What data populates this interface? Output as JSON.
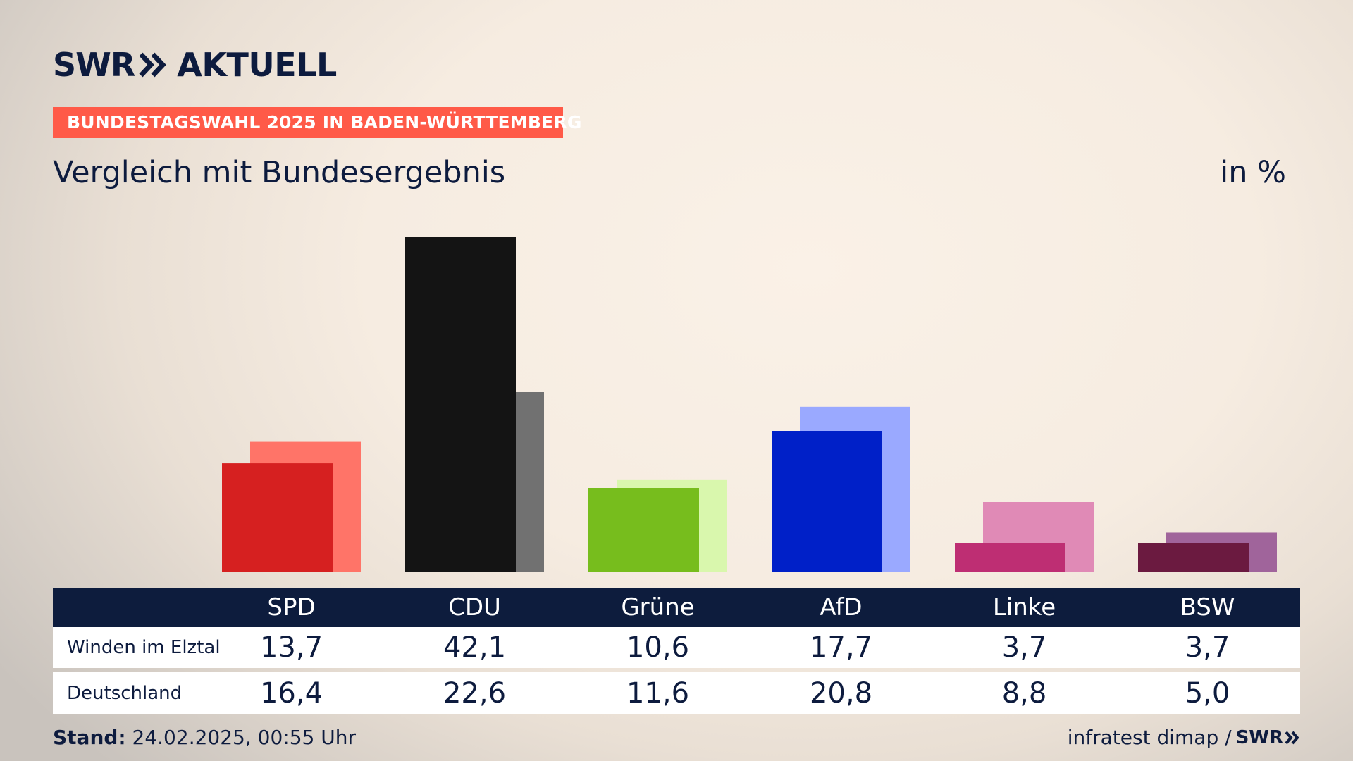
{
  "header": {
    "logo_swr": "SWR",
    "logo_aktuell": "AKTUELL",
    "tag": "BUNDESTAGSWAHL 2025 IN BADEN-WÜRTTEMBERG",
    "subtitle": "Vergleich mit Bundesergebnis",
    "unit": "in %"
  },
  "table": {
    "rows": [
      {
        "label": "Winden im Elztal"
      },
      {
        "label": "Deutschland"
      }
    ]
  },
  "footer": {
    "stand_label": "Stand:",
    "stand_value": "24.02.2025, 00:55 Uhr",
    "source": "infratest dimap /",
    "source_logo": "SWR"
  },
  "chart_data": {
    "type": "bar",
    "categories": [
      "SPD",
      "CDU",
      "Grüne",
      "AfD",
      "Linke",
      "BSW"
    ],
    "series": [
      {
        "name": "Winden im Elztal",
        "values": [
          13.7,
          42.1,
          10.6,
          17.7,
          3.7,
          3.7
        ]
      },
      {
        "name": "Deutschland",
        "values": [
          16.4,
          22.6,
          11.6,
          20.8,
          8.8,
          5.0
        ]
      }
    ],
    "display_values": [
      [
        "13,7",
        "42,1",
        "10,6",
        "17,7",
        "3,7",
        "3,7"
      ],
      [
        "16,4",
        "22,6",
        "11,6",
        "20,8",
        "8,8",
        "5,0"
      ]
    ],
    "colors_local": [
      "#d62020",
      "#141414",
      "#77bd1d",
      "#0020c8",
      "#be2e73",
      "#6b1a40"
    ],
    "colors_national": [
      "#ff7468",
      "#717171",
      "#d9f7ad",
      "#9aa9ff",
      "#e08ab6",
      "#a0649b"
    ],
    "ylim": [
      0,
      42.1
    ],
    "grid": false,
    "legend": "table-below"
  }
}
